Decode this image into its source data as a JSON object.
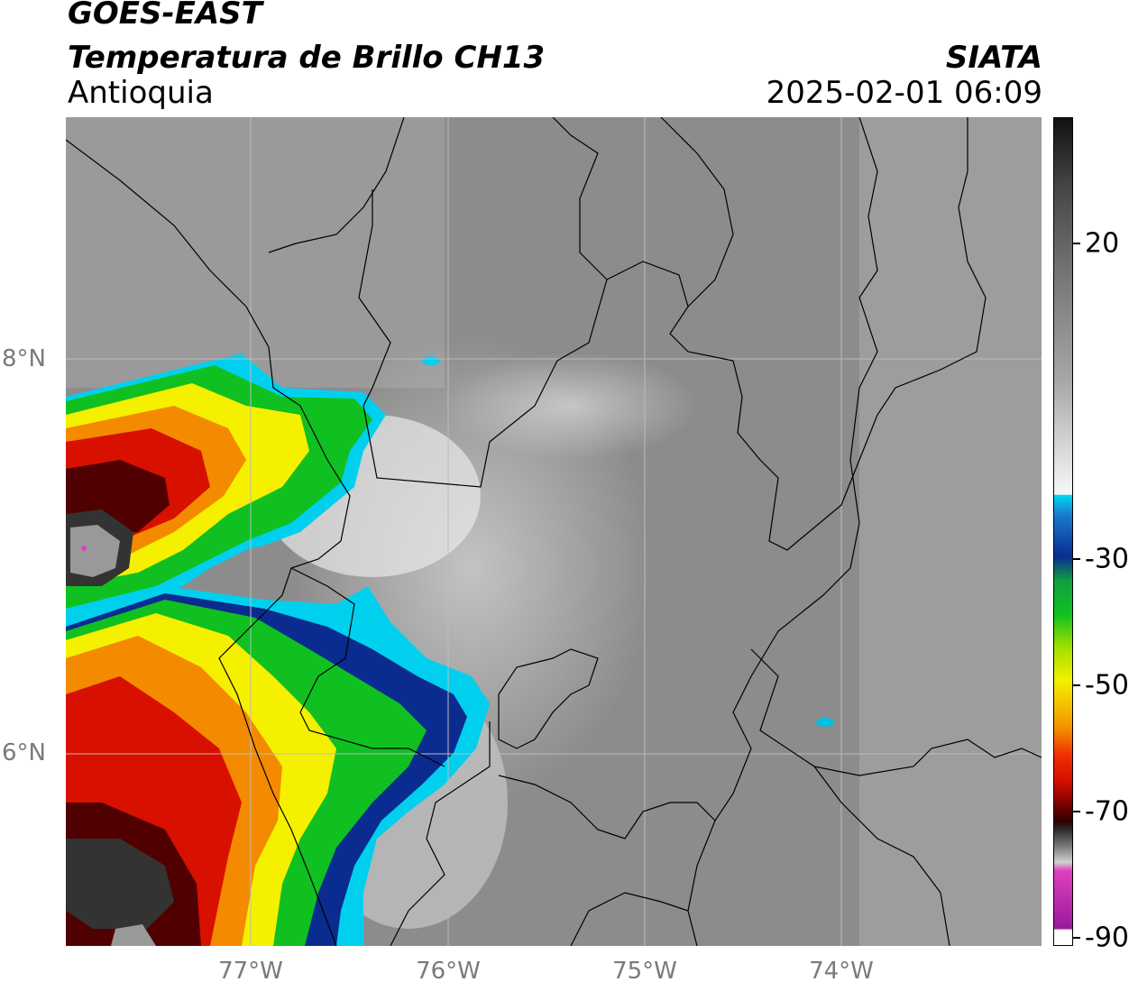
{
  "header": {
    "satellite": "GOES-EAST",
    "product": "Temperatura de Brillo CH13",
    "region": "Antioquia",
    "organization": "SIATA",
    "datetime": "2025-02-01 06:09"
  },
  "map": {
    "lat_labels": [
      "8°N",
      "6°N"
    ],
    "lon_labels": [
      "77°W",
      "76°W",
      "75°W",
      "74°W"
    ]
  },
  "colorbar": {
    "tick_labels": [
      "20",
      "-30",
      "-50",
      "-70",
      "-90"
    ],
    "colors": {
      "warm_top": "#111111",
      "grey_mid": "#c8c8c8",
      "cyan": "#00d8f0",
      "blue": "#0a2c90",
      "green": "#10c020",
      "yellow": "#f4f000",
      "orange": "#f48a00",
      "red": "#d81000",
      "dark_red": "#500000",
      "magenta": "#e040c0",
      "purple": "#9a1a9a"
    }
  }
}
